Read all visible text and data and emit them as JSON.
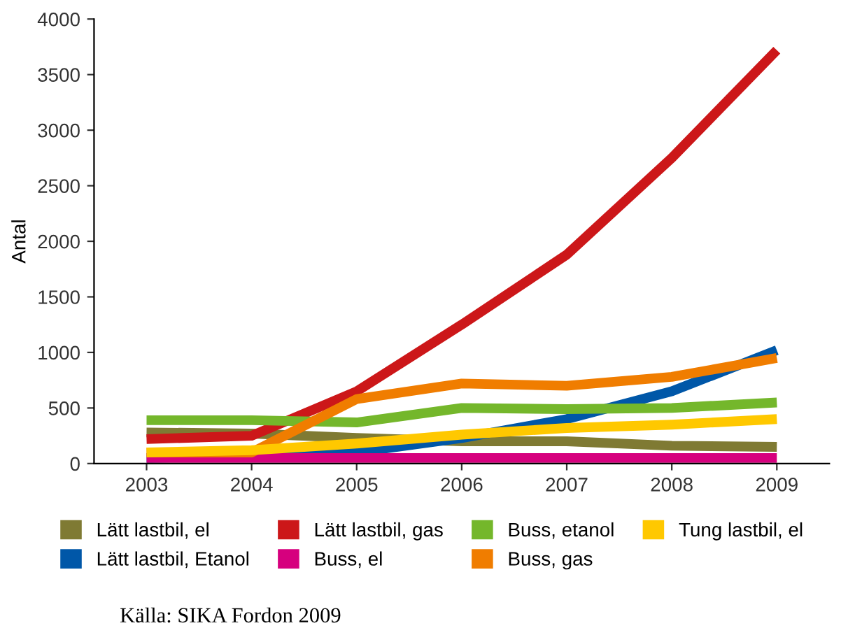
{
  "chart_data": {
    "type": "line",
    "ylabel": "Antal",
    "categories": [
      "2003",
      "2004",
      "2005",
      "2006",
      "2007",
      "2008",
      "2009"
    ],
    "ylim": [
      0,
      4000
    ],
    "yticks": [
      0,
      500,
      1000,
      1500,
      2000,
      2500,
      3000,
      3500,
      4000
    ],
    "grid": false,
    "legend": "bottom",
    "marker": "none",
    "line_style": "solid",
    "series": [
      {
        "name": "Lätt lastbil, el",
        "color": "#7f7a33",
        "values": [
          280,
          270,
          230,
          200,
          200,
          160,
          150
        ]
      },
      {
        "name": "Lätt lastbil, Etanol",
        "color": "#0057a8",
        "values": [
          50,
          70,
          100,
          230,
          400,
          650,
          1020
        ]
      },
      {
        "name": "Lätt lastbil, gas",
        "color": "#cc1719",
        "values": [
          220,
          250,
          650,
          1250,
          1880,
          2750,
          3720
        ]
      },
      {
        "name": "Buss, el",
        "color": "#d6007e",
        "values": [
          50,
          50,
          50,
          50,
          50,
          50,
          50
        ]
      },
      {
        "name": "Buss, etanol",
        "color": "#74b72b",
        "values": [
          390,
          390,
          370,
          500,
          490,
          500,
          550
        ]
      },
      {
        "name": "Buss, gas",
        "color": "#f07d00",
        "values": [
          100,
          100,
          580,
          720,
          700,
          780,
          950
        ]
      },
      {
        "name": "Tung lastbil, el",
        "color": "#ffc800",
        "values": [
          100,
          120,
          180,
          260,
          320,
          350,
          400
        ]
      }
    ],
    "annotations": [
      "Källa: SIKA Fordon 2009"
    ]
  }
}
